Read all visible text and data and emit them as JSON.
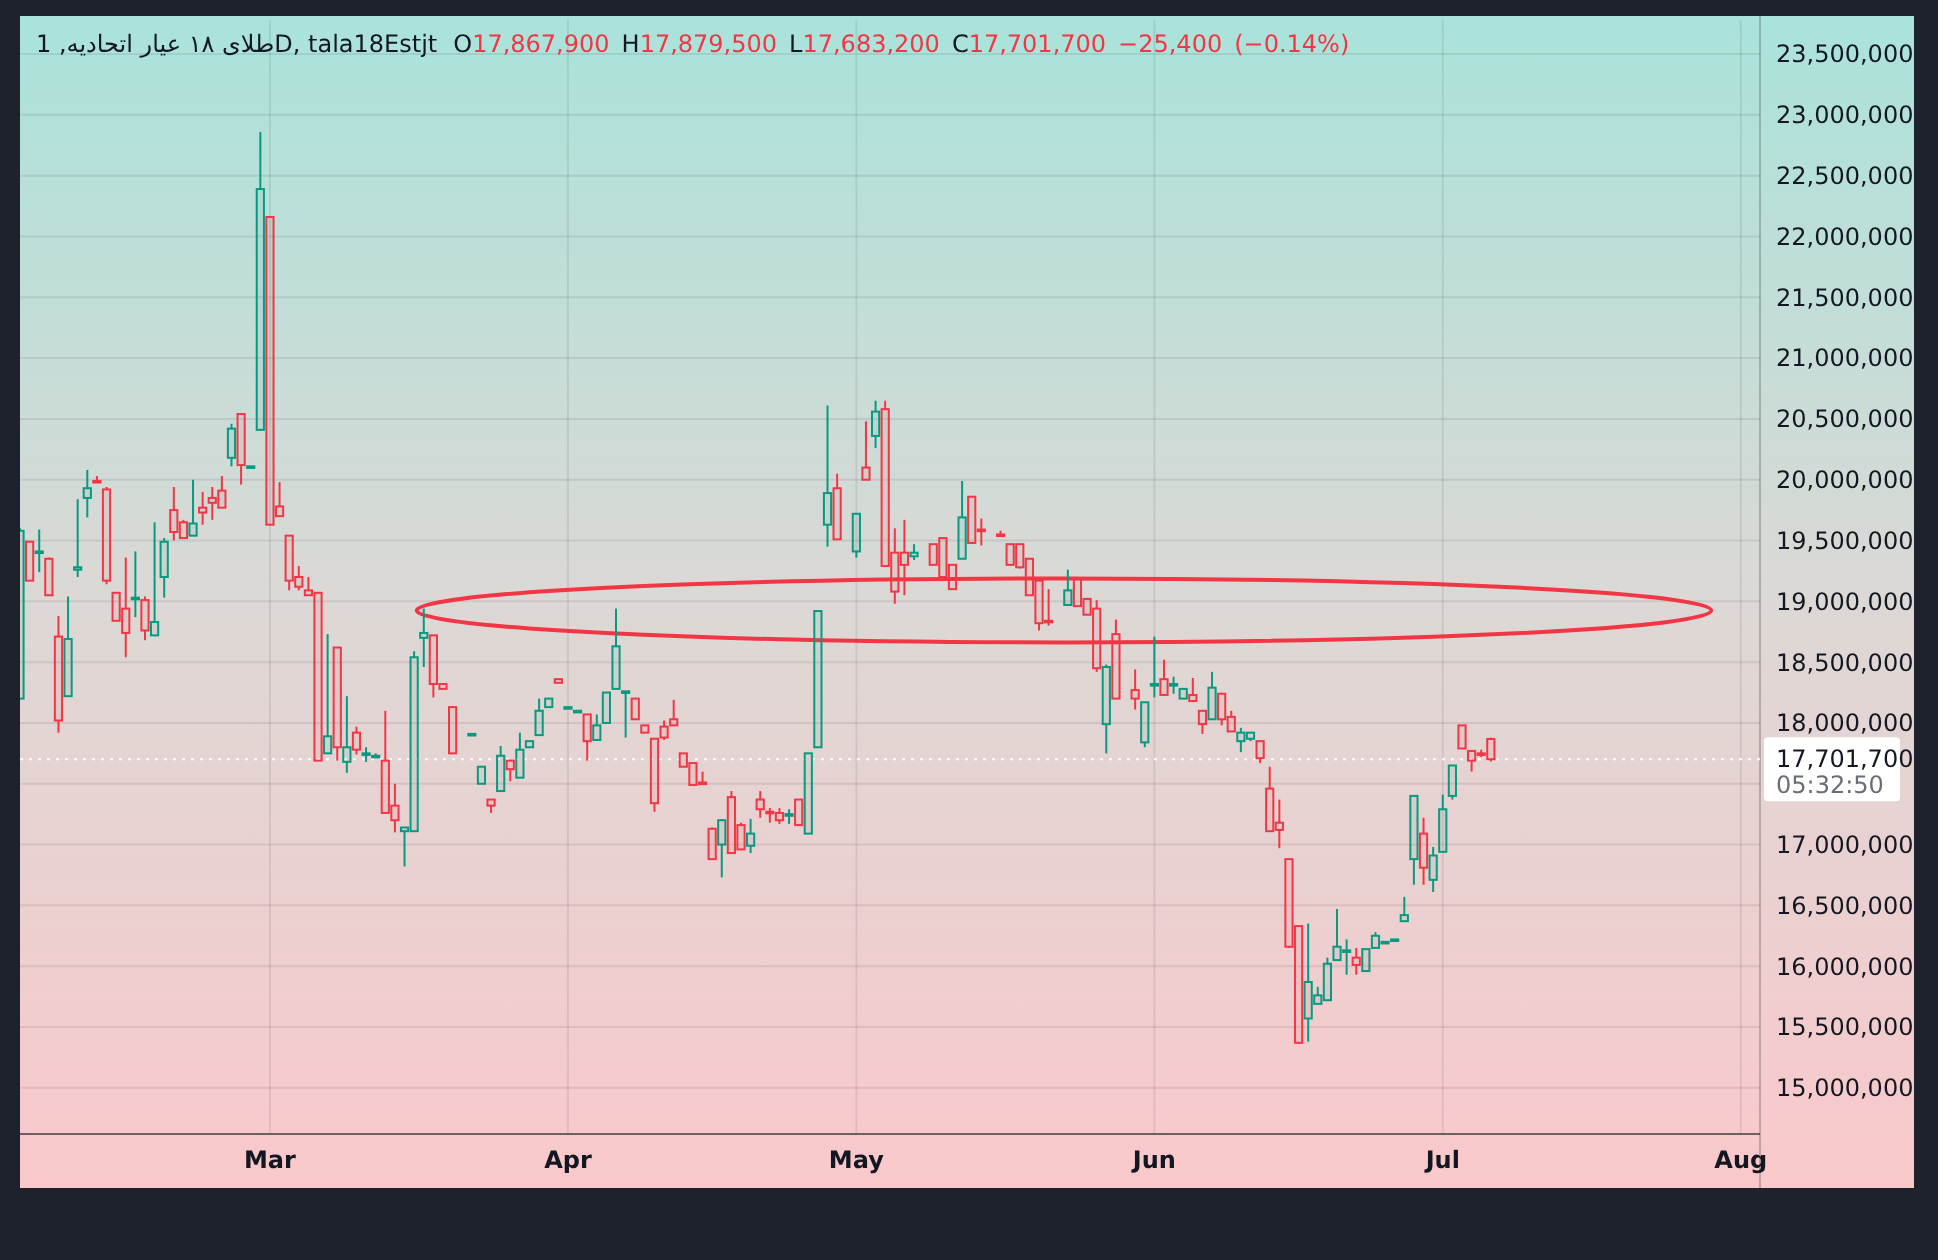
{
  "chart_data": {
    "type": "candlestick",
    "title": "طلای ۱۸ عیار اتحادیه, 1D, tala18Estjt",
    "subtitle": "O17,867,900 H17,879,500 L17,683,200 C17,701,700 −25,400 (−0.14%)",
    "x": [
      "--02-03",
      "--02-04",
      "--02-05",
      "--02-06",
      "--02-07",
      "--02-08",
      "--02-09",
      "--02-10",
      "--02-11",
      "--02-12",
      "--02-13",
      "--02-14",
      "--02-15",
      "--02-16",
      "--02-17",
      "--02-18",
      "--02-19",
      "--02-20",
      "--02-21",
      "--02-22",
      "--02-23",
      "--02-24",
      "--02-25",
      "--02-26",
      "--02-27",
      "--02-28",
      "--03-01",
      "--03-02",
      "--03-03",
      "--03-04",
      "--03-05",
      "--03-06",
      "--03-07",
      "--03-08",
      "--03-09",
      "--03-10",
      "--03-11",
      "--03-12",
      "--03-13",
      "--03-14",
      "--03-15",
      "--03-16",
      "--03-17",
      "--03-18",
      "--03-19",
      "--03-20",
      "--03-22",
      "--03-23",
      "--03-24",
      "--03-25",
      "--03-26",
      "--03-27",
      "--03-28",
      "--03-29",
      "--03-30",
      "--03-31",
      "--04-01",
      "--04-02",
      "--04-03",
      "--04-04",
      "--04-05",
      "--04-06",
      "--04-07",
      "--04-08",
      "--04-09",
      "--04-10",
      "--04-11",
      "--04-12",
      "--04-13",
      "--04-14",
      "--04-15",
      "--04-16",
      "--04-17",
      "--04-18",
      "--04-19",
      "--04-20",
      "--04-21",
      "--04-22",
      "--04-23",
      "--04-24",
      "--04-25",
      "--04-26",
      "--04-27",
      "--04-28",
      "--04-29",
      "--05-01",
      "--05-02",
      "--05-03",
      "--05-04",
      "--05-05",
      "--05-06",
      "--05-07",
      "--05-09",
      "--05-10",
      "--05-11",
      "--05-12",
      "--05-13",
      "--05-14",
      "--05-16",
      "--05-17",
      "--05-18",
      "--05-19",
      "--05-20",
      "--05-21",
      "--05-23",
      "--05-24",
      "--05-25",
      "--05-26",
      "--05-27",
      "--05-28",
      "--05-30",
      "--05-31",
      "--06-01",
      "--06-02",
      "--06-03",
      "--06-04",
      "--06-05",
      "--06-06",
      "--06-07",
      "--06-08",
      "--06-09",
      "--06-10",
      "--06-11",
      "--06-12",
      "--06-13",
      "--06-14",
      "--06-15",
      "--06-16",
      "--06-17",
      "--06-18",
      "--06-19",
      "--06-20",
      "--06-21",
      "--06-22",
      "--06-23",
      "--06-24",
      "--06-25",
      "--06-26",
      "--06-27",
      "--06-28",
      "--06-29",
      "--06-30",
      "--07-01",
      "--07-02",
      "--07-03",
      "--07-04",
      "--07-05",
      "--07-06"
    ],
    "ohlc": [
      [
        18200000,
        19600000,
        18200000,
        19580000
      ],
      [
        19490000,
        19490000,
        19170000,
        19170000
      ],
      [
        19400000,
        19590000,
        19240000,
        19410000
      ],
      [
        19350000,
        19360000,
        19050000,
        19050000
      ],
      [
        18710000,
        18880000,
        17920000,
        18020000
      ],
      [
        18220000,
        19040000,
        18220000,
        18690000
      ],
      [
        19260000,
        19840000,
        19200000,
        19280000
      ],
      [
        19850000,
        20080000,
        19690000,
        19930000
      ],
      [
        19990000,
        20030000,
        19980000,
        19980000
      ],
      [
        19920000,
        19940000,
        19140000,
        19170000
      ],
      [
        19070000,
        19070000,
        18840000,
        18840000
      ],
      [
        18940000,
        19360000,
        18540000,
        18740000
      ],
      [
        19020000,
        19410000,
        18870000,
        19030000
      ],
      [
        19010000,
        19040000,
        18680000,
        18760000
      ],
      [
        18720000,
        19650000,
        18720000,
        18830000
      ],
      [
        19200000,
        19520000,
        19030000,
        19490000
      ],
      [
        19750000,
        19940000,
        19500000,
        19570000
      ],
      [
        19650000,
        19670000,
        19520000,
        19520000
      ],
      [
        19540000,
        20000000,
        19540000,
        19640000
      ],
      [
        19770000,
        19900000,
        19630000,
        19730000
      ],
      [
        19850000,
        19940000,
        19670000,
        19810000
      ],
      [
        19910000,
        20030000,
        19770000,
        19770000
      ],
      [
        20180000,
        20460000,
        20110000,
        20420000
      ],
      [
        20540000,
        20540000,
        19960000,
        20120000
      ],
      [
        20110000,
        20110000,
        20110000,
        20110000
      ],
      [
        20410000,
        22860000,
        20410000,
        22390000
      ],
      [
        22160000,
        22160000,
        19630000,
        19630000
      ],
      [
        19780000,
        19980000,
        19700000,
        19700000
      ],
      [
        19540000,
        19540000,
        19090000,
        19170000
      ],
      [
        19200000,
        19290000,
        19090000,
        19120000
      ],
      [
        19090000,
        19200000,
        19050000,
        19050000
      ],
      [
        19070000,
        19070000,
        17690000,
        17690000
      ],
      [
        17750000,
        18730000,
        17750000,
        17890000
      ],
      [
        18620000,
        18620000,
        17690000,
        17800000
      ],
      [
        17680000,
        18220000,
        17590000,
        17800000
      ],
      [
        17920000,
        17970000,
        17740000,
        17780000
      ],
      [
        17740000,
        17800000,
        17680000,
        17750000
      ],
      [
        17720000,
        17750000,
        17720000,
        17730000
      ],
      [
        17690000,
        18100000,
        17260000,
        17260000
      ],
      [
        17320000,
        17500000,
        17100000,
        17200000
      ],
      [
        17110000,
        17140000,
        16820000,
        17140000
      ],
      [
        17110000,
        18590000,
        17110000,
        18540000
      ],
      [
        18700000,
        18940000,
        18460000,
        18740000
      ],
      [
        18720000,
        18720000,
        18210000,
        18320000
      ],
      [
        18320000,
        18320000,
        18280000,
        18280000
      ],
      [
        18130000,
        18130000,
        17750000,
        17750000
      ],
      [
        17910000,
        17910000,
        17910000,
        17910000
      ],
      [
        17500000,
        17640000,
        17500000,
        17640000
      ],
      [
        17370000,
        17370000,
        17260000,
        17320000
      ],
      [
        17440000,
        17810000,
        17440000,
        17730000
      ],
      [
        17690000,
        17690000,
        17520000,
        17620000
      ],
      [
        17550000,
        17920000,
        17550000,
        17780000
      ],
      [
        17800000,
        17850000,
        17800000,
        17850000
      ],
      [
        17900000,
        18200000,
        17900000,
        18100000
      ],
      [
        18130000,
        18200000,
        18130000,
        18200000
      ],
      [
        18360000,
        18360000,
        18330000,
        18330000
      ],
      [
        18130000,
        18130000,
        18130000,
        18130000
      ],
      [
        18100000,
        18100000,
        18100000,
        18100000
      ],
      [
        18070000,
        18070000,
        17690000,
        17850000
      ],
      [
        17860000,
        18070000,
        17860000,
        17980000
      ],
      [
        18000000,
        18250000,
        18000000,
        18250000
      ],
      [
        18280000,
        18940000,
        18280000,
        18630000
      ],
      [
        18250000,
        18260000,
        17880000,
        18260000
      ],
      [
        18200000,
        18200000,
        18030000,
        18030000
      ],
      [
        17980000,
        17980000,
        17920000,
        17920000
      ],
      [
        17870000,
        17870000,
        17270000,
        17340000
      ],
      [
        17970000,
        18020000,
        17860000,
        17880000
      ],
      [
        18030000,
        18190000,
        17980000,
        17980000
      ],
      [
        17750000,
        17750000,
        17640000,
        17640000
      ],
      [
        17670000,
        17670000,
        17490000,
        17490000
      ],
      [
        17510000,
        17600000,
        17500000,
        17500000
      ],
      [
        17130000,
        17140000,
        16880000,
        16880000
      ],
      [
        17000000,
        17210000,
        16730000,
        17200000
      ],
      [
        17390000,
        17440000,
        16930000,
        16930000
      ],
      [
        17160000,
        17180000,
        16960000,
        16960000
      ],
      [
        16990000,
        17210000,
        16930000,
        17090000
      ],
      [
        17370000,
        17440000,
        17220000,
        17290000
      ],
      [
        17270000,
        17300000,
        17180000,
        17270000
      ],
      [
        17260000,
        17300000,
        17170000,
        17200000
      ],
      [
        17240000,
        17290000,
        17170000,
        17250000
      ],
      [
        17370000,
        17370000,
        17160000,
        17160000
      ],
      [
        17090000,
        17750000,
        17090000,
        17750000
      ],
      [
        17800000,
        18920000,
        17800000,
        18920000
      ],
      [
        19630000,
        20610000,
        19450000,
        19890000
      ],
      [
        19930000,
        20050000,
        19510000,
        19510000
      ],
      [
        19410000,
        19720000,
        19360000,
        19720000
      ],
      [
        20100000,
        20480000,
        20000000,
        20000000
      ],
      [
        20360000,
        20650000,
        20260000,
        20560000
      ],
      [
        20580000,
        20650000,
        19290000,
        19290000
      ],
      [
        19400000,
        19600000,
        18980000,
        19080000
      ],
      [
        19400000,
        19670000,
        19050000,
        19300000
      ],
      [
        19370000,
        19470000,
        19340000,
        19400000
      ],
      [
        19470000,
        19470000,
        19300000,
        19300000
      ],
      [
        19520000,
        19520000,
        19200000,
        19200000
      ],
      [
        19300000,
        19300000,
        19100000,
        19100000
      ],
      [
        19350000,
        19990000,
        19350000,
        19690000
      ],
      [
        19860000,
        19860000,
        19480000,
        19480000
      ],
      [
        19590000,
        19680000,
        19460000,
        19580000
      ],
      [
        19550000,
        19580000,
        19540000,
        19540000
      ],
      [
        19470000,
        19470000,
        19300000,
        19300000
      ],
      [
        19470000,
        19470000,
        19270000,
        19280000
      ],
      [
        19350000,
        19350000,
        19050000,
        19050000
      ],
      [
        19170000,
        19170000,
        18760000,
        18820000
      ],
      [
        18840000,
        19100000,
        18800000,
        18830000
      ],
      [
        18970000,
        19260000,
        18970000,
        19090000
      ],
      [
        19190000,
        19190000,
        18960000,
        18960000
      ],
      [
        19020000,
        19020000,
        18890000,
        18890000
      ],
      [
        18940000,
        19010000,
        18420000,
        18450000
      ],
      [
        17990000,
        18480000,
        17750000,
        18460000
      ],
      [
        18730000,
        18850000,
        18200000,
        18200000
      ],
      [
        18270000,
        18440000,
        18110000,
        18200000
      ],
      [
        17840000,
        18170000,
        17800000,
        18170000
      ],
      [
        18310000,
        18710000,
        18210000,
        18320000
      ],
      [
        18360000,
        18520000,
        18230000,
        18230000
      ],
      [
        18310000,
        18380000,
        18240000,
        18320000
      ],
      [
        18200000,
        18280000,
        18200000,
        18280000
      ],
      [
        18230000,
        18370000,
        18180000,
        18180000
      ],
      [
        18100000,
        18100000,
        17910000,
        17990000
      ],
      [
        18030000,
        18420000,
        18030000,
        18290000
      ],
      [
        18240000,
        18240000,
        17980000,
        18030000
      ],
      [
        18050000,
        18100000,
        17930000,
        17930000
      ],
      [
        17850000,
        17960000,
        17760000,
        17920000
      ],
      [
        17870000,
        17920000,
        17850000,
        17920000
      ],
      [
        17850000,
        17850000,
        17670000,
        17710000
      ],
      [
        17460000,
        17640000,
        17110000,
        17110000
      ],
      [
        17180000,
        17370000,
        16970000,
        17120000
      ],
      [
        16880000,
        16880000,
        16150000,
        16160000
      ],
      [
        16330000,
        16330000,
        15360000,
        15370000
      ],
      [
        15570000,
        16350000,
        15380000,
        15870000
      ],
      [
        15690000,
        15830000,
        15690000,
        15760000
      ],
      [
        15720000,
        16070000,
        15720000,
        16020000
      ],
      [
        16050000,
        16470000,
        16050000,
        16160000
      ],
      [
        16120000,
        16220000,
        15930000,
        16130000
      ],
      [
        16070000,
        16150000,
        15930000,
        16010000
      ],
      [
        15960000,
        16140000,
        15960000,
        16140000
      ],
      [
        16150000,
        16280000,
        16150000,
        16250000
      ],
      [
        16200000,
        16200000,
        16200000,
        16200000
      ],
      [
        16220000,
        16220000,
        16220000,
        16220000
      ],
      [
        16370000,
        16570000,
        16370000,
        16420000
      ],
      [
        16880000,
        17400000,
        16670000,
        17400000
      ],
      [
        17090000,
        17220000,
        16670000,
        16810000
      ],
      [
        16710000,
        16980000,
        16610000,
        16910000
      ],
      [
        16940000,
        17410000,
        16940000,
        17290000
      ],
      [
        17400000,
        17650000,
        17370000,
        17650000
      ],
      [
        17980000,
        17980000,
        17790000,
        17790000
      ],
      [
        17770000,
        17770000,
        17600000,
        17690000
      ],
      [
        17750000,
        17780000,
        17720000,
        17740000
      ],
      [
        17867900,
        17879500,
        17683200,
        17701700
      ]
    ],
    "colors": [
      "#089981",
      "#f23645",
      "#089981",
      "#f23645",
      "#f23645",
      "#089981",
      "#089981",
      "#089981",
      "#f23645",
      "#f23645",
      "#f23645",
      "#f23645",
      "#089981",
      "#f23645",
      "#089981",
      "#089981",
      "#f23645",
      "#f23645",
      "#089981",
      "#f23645",
      "#f23645",
      "#f23645",
      "#089981",
      "#f23645",
      "#089981",
      "#089981",
      "#f23645",
      "#f23645",
      "#f23645",
      "#f23645",
      "#f23645",
      "#f23645",
      "#089981",
      "#f23645",
      "#089981",
      "#f23645",
      "#089981",
      "#089981",
      "#f23645",
      "#f23645",
      "#089981",
      "#089981",
      "#089981",
      "#f23645",
      "#f23645",
      "#f23645",
      "#089981",
      "#089981",
      "#f23645",
      "#089981",
      "#f23645",
      "#089981",
      "#089981",
      "#089981",
      "#089981",
      "#f23645",
      "#089981",
      "#089981",
      "#f23645",
      "#089981",
      "#089981",
      "#089981",
      "#089981",
      "#f23645",
      "#f23645",
      "#f23645",
      "#f23645",
      "#f23645",
      "#f23645",
      "#f23645",
      "#f23645",
      "#f23645",
      "#089981",
      "#f23645",
      "#f23645",
      "#089981",
      "#f23645",
      "#f23645",
      "#f23645",
      "#089981",
      "#f23645",
      "#089981",
      "#089981",
      "#089981",
      "#f23645",
      "#089981",
      "#f23645",
      "#089981",
      "#f23645",
      "#f23645",
      "#f23645",
      "#089981",
      "#f23645",
      "#f23645",
      "#f23645",
      "#089981",
      "#f23645",
      "#f23645",
      "#f23645",
      "#f23645",
      "#f23645",
      "#f23645",
      "#f23645",
      "#f23645",
      "#089981",
      "#f23645",
      "#f23645",
      "#f23645",
      "#089981",
      "#f23645",
      "#f23645",
      "#089981",
      "#089981",
      "#f23645",
      "#089981",
      "#089981",
      "#f23645",
      "#f23645",
      "#089981",
      "#f23645",
      "#f23645",
      "#089981",
      "#089981",
      "#f23645",
      "#f23645",
      "#f23645",
      "#f23645",
      "#f23645",
      "#089981",
      "#089981",
      "#089981",
      "#089981",
      "#089981",
      "#f23645",
      "#089981",
      "#089981",
      "#089981",
      "#089981",
      "#089981",
      "#089981",
      "#f23645",
      "#089981",
      "#089981",
      "#089981",
      "#f23645",
      "#f23645",
      "#f23645",
      "#f23645"
    ],
    "xlim": [
      "--02-03",
      "--08-03"
    ],
    "xticks": [
      {
        "value": "--03-01",
        "label": "Mar"
      },
      {
        "value": "--04-01",
        "label": "Apr"
      },
      {
        "value": "--05-01",
        "label": "May"
      },
      {
        "value": "--06-01",
        "label": "Jun"
      },
      {
        "value": "--07-01",
        "label": "Jul"
      },
      {
        "value": "--08-01",
        "label": "Aug"
      }
    ],
    "ylim": [
      14620000,
      23780000
    ],
    "yticks": [
      {
        "value": 15000000,
        "label": "15,000,000"
      },
      {
        "value": 15500000,
        "label": "15,500,000"
      },
      {
        "value": 16000000,
        "label": "16,000,000"
      },
      {
        "value": 16500000,
        "label": "16,500,000"
      },
      {
        "value": 17000000,
        "label": "17,000,000"
      },
      {
        "value": 17500000,
        "label": null
      },
      {
        "value": 18000000,
        "label": "18,000,000"
      },
      {
        "value": 18500000,
        "label": "18,500,000"
      },
      {
        "value": 19000000,
        "label": "19,000,000"
      },
      {
        "value": 19500000,
        "label": "19,500,000"
      },
      {
        "value": 20000000,
        "label": "20,000,000"
      },
      {
        "value": 20500000,
        "label": "20,500,000"
      },
      {
        "value": 21000000,
        "label": "21,000,000"
      },
      {
        "value": 21500000,
        "label": "21,500,000"
      },
      {
        "value": 22000000,
        "label": "22,000,000"
      },
      {
        "value": 22500000,
        "label": "22,500,000"
      },
      {
        "value": 23000000,
        "label": "23,000,000"
      },
      {
        "value": 23500000,
        "label": "23,500,000"
      }
    ],
    "grid": true,
    "ref_lines": [
      {
        "axis": "y",
        "value": 17701700,
        "label": "17,701,700",
        "color": "#ffffff",
        "line_style": "dotted"
      }
    ],
    "annotations": [
      "05:32:50"
    ]
  }
}
